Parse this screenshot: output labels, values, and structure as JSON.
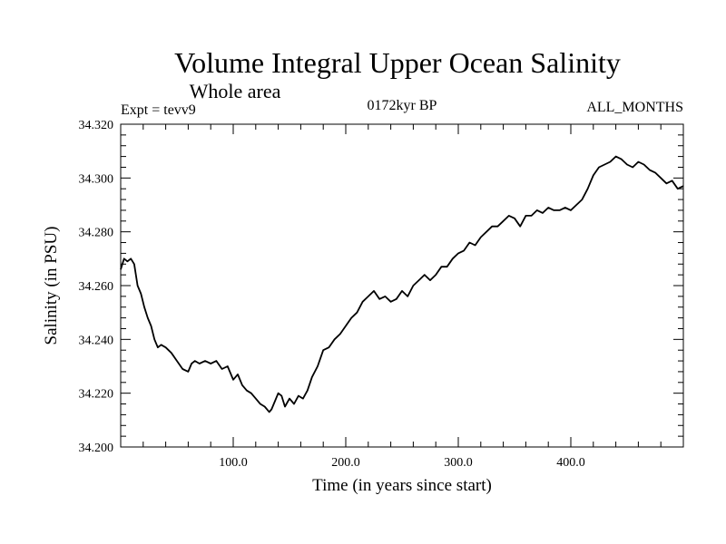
{
  "chart_data": {
    "type": "line",
    "title": "Volume Integral Upper Ocean Salinity",
    "subtitle": "Whole area",
    "annotations": {
      "left": "Expt = tevv9",
      "center": "0172kyr BP",
      "right": "ALL_MONTHS"
    },
    "xlabel": "Time (in years since start)",
    "ylabel": "Salinity (in PSU)",
    "xlim": [
      0,
      500
    ],
    "ylim": [
      34.2,
      34.32
    ],
    "xticks": [
      {
        "value": 100,
        "label": "100.0"
      },
      {
        "value": 200,
        "label": "200.0"
      },
      {
        "value": 300,
        "label": "300.0"
      },
      {
        "value": 400,
        "label": "400.0"
      }
    ],
    "yticks": [
      {
        "value": 34.2,
        "label": "34.200"
      },
      {
        "value": 34.22,
        "label": "34.220"
      },
      {
        "value": 34.24,
        "label": "34.240"
      },
      {
        "value": 34.26,
        "label": "34.260"
      },
      {
        "value": 34.28,
        "label": "34.280"
      },
      {
        "value": 34.3,
        "label": "34.300"
      },
      {
        "value": 34.32,
        "label": "34.320"
      }
    ],
    "grid": false,
    "series": [
      {
        "x": [
          0,
          3,
          6,
          9,
          12,
          15,
          18,
          21,
          24,
          27,
          30,
          33,
          36,
          40,
          45,
          50,
          55,
          60,
          63,
          66,
          70,
          75,
          80,
          85,
          90,
          95,
          100,
          104,
          108,
          112,
          116,
          120,
          124,
          128,
          132,
          134,
          137,
          140,
          143,
          146,
          150,
          154,
          158,
          162,
          166,
          170,
          175,
          180,
          185,
          190,
          195,
          200,
          205,
          210,
          215,
          220,
          225,
          230,
          235,
          240,
          245,
          250,
          255,
          260,
          265,
          270,
          275,
          280,
          285,
          290,
          295,
          300,
          305,
          310,
          315,
          320,
          325,
          330,
          335,
          340,
          345,
          350,
          355,
          360,
          365,
          370,
          375,
          380,
          385,
          390,
          395,
          400,
          405,
          410,
          415,
          420,
          425,
          430,
          435,
          440,
          445,
          450,
          455,
          460,
          465,
          470,
          475,
          480,
          485,
          490,
          495,
          500
        ],
        "y": [
          34.266,
          34.27,
          34.269,
          34.27,
          34.268,
          34.26,
          34.257,
          34.252,
          34.248,
          34.245,
          34.24,
          34.237,
          34.238,
          34.237,
          34.235,
          34.232,
          34.229,
          34.228,
          34.231,
          34.232,
          34.231,
          34.232,
          34.231,
          34.232,
          34.229,
          34.23,
          34.225,
          34.227,
          34.223,
          34.221,
          34.22,
          34.218,
          34.216,
          34.215,
          34.213,
          34.214,
          34.217,
          34.22,
          34.219,
          34.215,
          34.218,
          34.216,
          34.219,
          34.218,
          34.221,
          34.226,
          34.23,
          34.236,
          34.237,
          34.24,
          34.242,
          34.245,
          34.248,
          34.25,
          34.254,
          34.256,
          34.258,
          34.255,
          34.256,
          34.254,
          34.255,
          34.258,
          34.256,
          34.26,
          34.262,
          34.264,
          34.262,
          34.264,
          34.267,
          34.267,
          34.27,
          34.272,
          34.273,
          34.276,
          34.275,
          34.278,
          34.28,
          34.282,
          34.282,
          34.284,
          34.286,
          34.285,
          34.282,
          34.286,
          34.286,
          34.288,
          34.287,
          34.289,
          34.288,
          34.288,
          34.289,
          34.288,
          34.29,
          34.292,
          34.296,
          34.301,
          34.304,
          34.305,
          34.306,
          34.308,
          34.307,
          34.305,
          34.304,
          34.306,
          34.305,
          34.303,
          34.302,
          34.3,
          34.298,
          34.299,
          34.296,
          34.297
        ]
      }
    ]
  }
}
